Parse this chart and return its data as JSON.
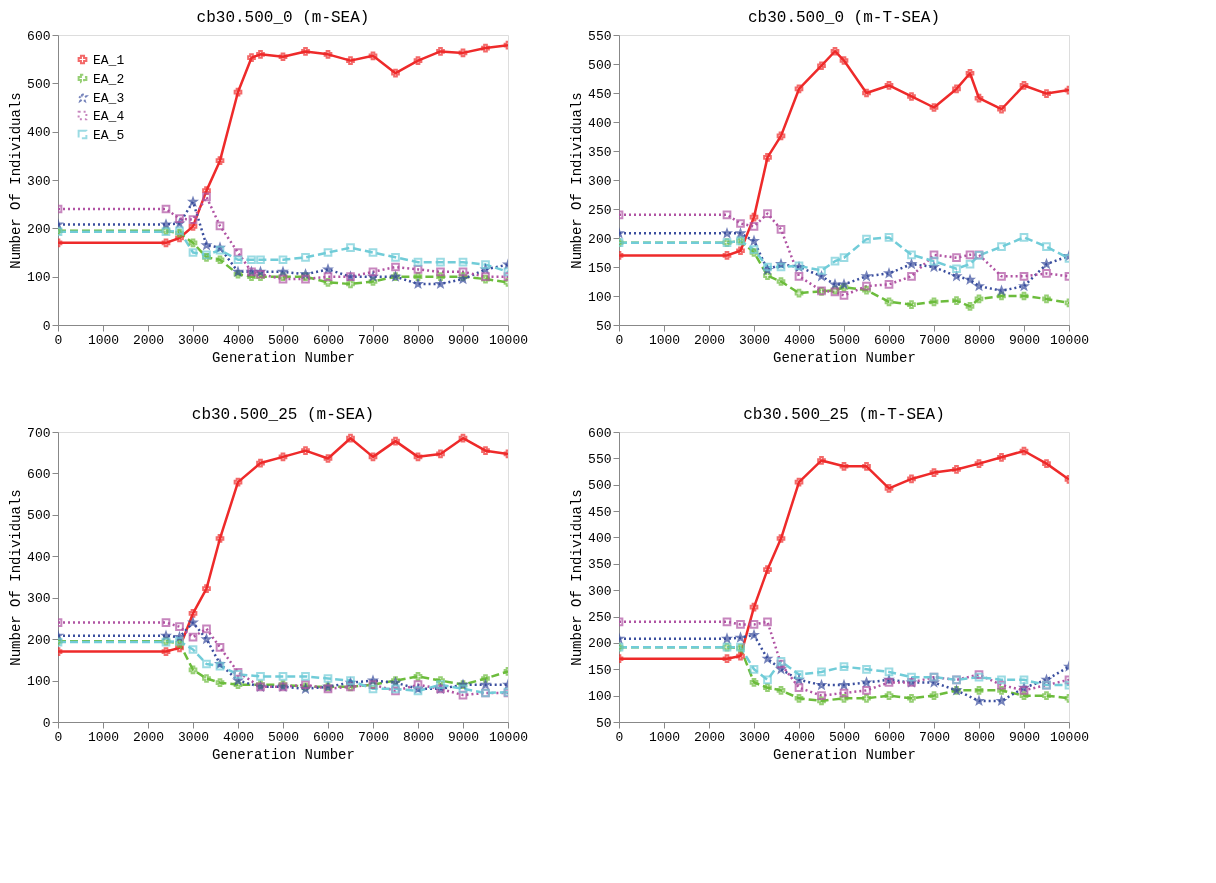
{
  "chart_data": [
    {
      "type": "line",
      "title": "cb30.500_0 (m-SEA)",
      "xlabel": "Generation  Number",
      "ylabel": "Number  Of  Individuals",
      "legend": "top left",
      "grid": false,
      "xlim": [
        0,
        10000
      ],
      "xticks": [
        0,
        1000,
        2000,
        3000,
        4000,
        5000,
        6000,
        7000,
        8000,
        9000,
        10000
      ],
      "ylim": [
        0,
        600
      ],
      "yticks": [
        0,
        100,
        200,
        300,
        400,
        500,
        600
      ],
      "x": [
        0,
        2400,
        2700,
        3000,
        3300,
        3600,
        4000,
        4300,
        4500,
        5000,
        5500,
        6000,
        6500,
        7000,
        7500,
        8000,
        8500,
        9000,
        9500,
        10000
      ],
      "series": [
        {
          "name": "EA_1",
          "color": "#ee2a2a",
          "marker": "cross",
          "line_style": "solid",
          "values": [
            170,
            170,
            180,
            204,
            278,
            340,
            482,
            553,
            560,
            555,
            566,
            560,
            547,
            557,
            521,
            547,
            566,
            563,
            573,
            579
          ]
        },
        {
          "name": "EA_2",
          "color": "#6cbc3c",
          "marker": "cross",
          "line_style": "dashed",
          "values": [
            195,
            195,
            190,
            170,
            140,
            135,
            105,
            100,
            100,
            100,
            100,
            88,
            85,
            90,
            100,
            100,
            100,
            100,
            95,
            88
          ]
        },
        {
          "name": "EA_3",
          "color": "#3a4e9e",
          "marker": "star",
          "line_style": "dotted",
          "values": [
            208,
            208,
            210,
            255,
            165,
            160,
            110,
            110,
            110,
            110,
            105,
            115,
            100,
            100,
            100,
            85,
            85,
            95,
            115,
            125
          ]
        },
        {
          "name": "EA_4",
          "color": "#b053a3",
          "marker": "square",
          "line_style": "dotted",
          "values": [
            240,
            240,
            220,
            218,
            265,
            205,
            150,
            110,
            105,
            95,
            95,
            100,
            100,
            110,
            120,
            115,
            110,
            110,
            100,
            100
          ]
        },
        {
          "name": "EA_5",
          "color": "#71ccd8",
          "marker": "square",
          "line_style": "dashed",
          "values": [
            193,
            193,
            195,
            150,
            145,
            155,
            135,
            135,
            135,
            135,
            140,
            150,
            160,
            150,
            140,
            130,
            130,
            130,
            125,
            110
          ]
        }
      ]
    },
    {
      "type": "line",
      "title": "cb30.500_0 (m-T-SEA)",
      "xlabel": "Generation  Number",
      "ylabel": "Number  Of  Individuals",
      "legend": "top left",
      "grid": false,
      "xlim": [
        0,
        10000
      ],
      "xticks": [
        0,
        1000,
        2000,
        3000,
        4000,
        5000,
        6000,
        7000,
        8000,
        9000,
        10000
      ],
      "ylim": [
        50,
        550
      ],
      "yticks": [
        50,
        100,
        150,
        200,
        250,
        300,
        350,
        400,
        450,
        500,
        550
      ],
      "x": [
        0,
        2400,
        2700,
        3000,
        3300,
        3600,
        4000,
        4500,
        4800,
        5000,
        5500,
        6000,
        6500,
        7000,
        7500,
        7800,
        8000,
        8500,
        9000,
        9500,
        10000
      ],
      "series": [
        {
          "name": "EA_1",
          "color": "#ee2a2a",
          "marker": "cross",
          "line_style": "solid",
          "values": [
            170,
            170,
            178,
            236,
            339,
            376,
            457,
            497,
            522,
            506,
            450,
            463,
            444,
            425,
            457,
            484,
            441,
            422,
            463,
            449,
            455
          ]
        },
        {
          "name": "EA_2",
          "color": "#6cbc3c",
          "marker": "cross",
          "line_style": "dashed",
          "values": [
            192,
            192,
            195,
            175,
            135,
            125,
            105,
            108,
            110,
            115,
            110,
            90,
            85,
            90,
            92,
            82,
            95,
            100,
            100,
            95,
            88
          ]
        },
        {
          "name": "EA_3",
          "color": "#3a4e9e",
          "marker": "star",
          "line_style": "dotted",
          "values": [
            208,
            208,
            208,
            195,
            145,
            155,
            150,
            134,
            120,
            120,
            134,
            139,
            155,
            150,
            134,
            128,
            117,
            109,
            117,
            155,
            169
          ]
        },
        {
          "name": "EA_4",
          "color": "#b053a3",
          "marker": "square",
          "line_style": "dotted",
          "values": [
            240,
            240,
            225,
            220,
            242,
            215,
            134,
            109,
            107,
            101,
            117,
            120,
            134,
            171,
            166,
            171,
            171,
            134,
            134,
            139,
            134
          ]
        },
        {
          "name": "EA_5",
          "color": "#71ccd8",
          "marker": "square",
          "line_style": "dashed",
          "values": [
            192,
            192,
            195,
            180,
            150,
            150,
            152,
            144,
            160,
            166,
            198,
            201,
            171,
            160,
            147,
            155,
            170,
            185,
            201,
            185,
            165
          ]
        }
      ]
    },
    {
      "type": "line",
      "title": "cb30.500_25 (m-SEA)",
      "xlabel": "Generation  Number",
      "ylabel": "Number  Of  Individuals",
      "legend": "top left",
      "grid": false,
      "xlim": [
        0,
        10000
      ],
      "xticks": [
        0,
        1000,
        2000,
        3000,
        4000,
        5000,
        6000,
        7000,
        8000,
        9000,
        10000
      ],
      "ylim": [
        0,
        700
      ],
      "yticks": [
        0,
        100,
        200,
        300,
        400,
        500,
        600,
        700
      ],
      "x": [
        0,
        2400,
        2700,
        3000,
        3300,
        3600,
        4000,
        4500,
        5000,
        5500,
        6000,
        6500,
        7000,
        7500,
        8000,
        8500,
        9000,
        9500,
        10000
      ],
      "series": [
        {
          "name": "EA_1",
          "color": "#ee2a2a",
          "marker": "cross",
          "line_style": "solid",
          "values": [
            170,
            170,
            179,
            262,
            322,
            443,
            579,
            625,
            640,
            655,
            636,
            685,
            640,
            678,
            640,
            647,
            685,
            655,
            647
          ]
        },
        {
          "name": "EA_2",
          "color": "#6cbc3c",
          "marker": "cross",
          "line_style": "dashed",
          "values": [
            195,
            195,
            190,
            126,
            105,
            95,
            90,
            90,
            90,
            85,
            85,
            85,
            90,
            100,
            110,
            100,
            90,
            105,
            122
          ]
        },
        {
          "name": "EA_3",
          "color": "#3a4e9e",
          "marker": "star",
          "line_style": "dotted",
          "values": [
            208,
            208,
            205,
            240,
            200,
            140,
            100,
            85,
            85,
            80,
            85,
            95,
            100,
            95,
            80,
            80,
            90,
            90,
            90
          ]
        },
        {
          "name": "EA_4",
          "color": "#b053a3",
          "marker": "square",
          "line_style": "dotted",
          "values": [
            240,
            240,
            230,
            205,
            225,
            180,
            120,
            85,
            85,
            90,
            80,
            85,
            90,
            75,
            90,
            80,
            65,
            70,
            70
          ]
        },
        {
          "name": "EA_5",
          "color": "#71ccd8",
          "marker": "square",
          "line_style": "dashed",
          "values": [
            193,
            193,
            195,
            175,
            140,
            135,
            115,
            110,
            110,
            110,
            105,
            100,
            80,
            80,
            75,
            90,
            80,
            70,
            72
          ]
        }
      ]
    },
    {
      "type": "line",
      "title": "cb30.500_25 (m-T-SEA)",
      "xlabel": "Generation  Number",
      "ylabel": "Number  Of  Individuals",
      "legend": "top left",
      "grid": false,
      "xlim": [
        0,
        10000
      ],
      "xticks": [
        0,
        1000,
        2000,
        3000,
        4000,
        5000,
        6000,
        7000,
        8000,
        9000,
        10000
      ],
      "ylim": [
        50,
        600
      ],
      "yticks": [
        50,
        100,
        150,
        200,
        250,
        300,
        350,
        400,
        450,
        500,
        550,
        600
      ],
      "x": [
        0,
        2400,
        2700,
        3000,
        3300,
        3600,
        4000,
        4500,
        5000,
        5500,
        6000,
        6500,
        7000,
        7500,
        8000,
        8500,
        9000,
        9500,
        10000
      ],
      "series": [
        {
          "name": "EA_1",
          "color": "#ee2a2a",
          "marker": "cross",
          "line_style": "solid",
          "values": [
            170,
            170,
            175,
            268,
            339,
            398,
            505,
            546,
            535,
            535,
            493,
            511,
            523,
            529,
            540,
            552,
            564,
            540,
            510
          ]
        },
        {
          "name": "EA_2",
          "color": "#6cbc3c",
          "marker": "cross",
          "line_style": "dashed",
          "values": [
            192,
            192,
            190,
            125,
            115,
            110,
            95,
            90,
            95,
            95,
            100,
            95,
            100,
            110,
            110,
            110,
            100,
            100,
            95
          ]
        },
        {
          "name": "EA_3",
          "color": "#3a4e9e",
          "marker": "star",
          "line_style": "dotted",
          "values": [
            208,
            208,
            210,
            215,
            170,
            150,
            130,
            120,
            120,
            125,
            130,
            125,
            125,
            110,
            90,
            90,
            115,
            130,
            155
          ]
        },
        {
          "name": "EA_4",
          "color": "#b053a3",
          "marker": "square",
          "line_style": "dotted",
          "values": [
            240,
            240,
            235,
            235,
            240,
            160,
            115,
            100,
            105,
            110,
            125,
            125,
            135,
            130,
            140,
            120,
            110,
            120,
            130
          ]
        },
        {
          "name": "EA_5",
          "color": "#71ccd8",
          "marker": "square",
          "line_style": "dashed",
          "values": [
            192,
            192,
            192,
            150,
            130,
            165,
            140,
            145,
            155,
            150,
            145,
            135,
            135,
            130,
            135,
            130,
            130,
            120,
            120
          ]
        }
      ]
    }
  ]
}
